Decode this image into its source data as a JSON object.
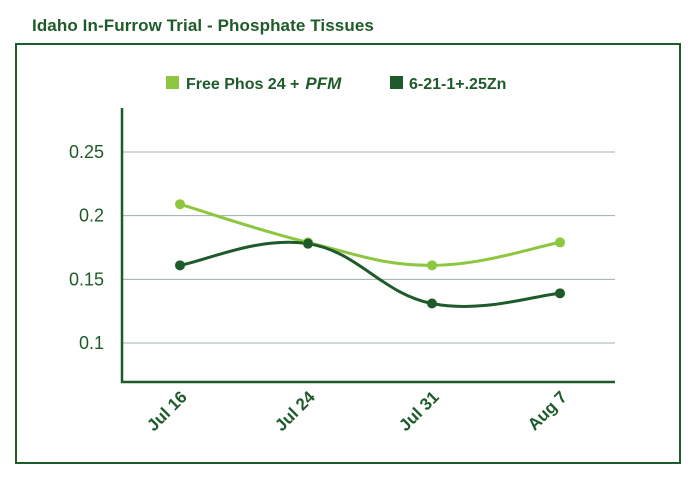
{
  "title": "Idaho In-Furrow Trial - Phosphate Tissues",
  "colors": {
    "frame": "#1e5b2b",
    "grid": "#9fb0a3",
    "series1": "#8dc63f",
    "series2": "#1e5b2b"
  },
  "chart_data": {
    "type": "line",
    "title": "Idaho In-Furrow Trial - Phosphate Tissues",
    "xlabel": "",
    "ylabel": "",
    "categories": [
      "Jul 16",
      "Jul 24",
      "Jul 31",
      "Aug 7"
    ],
    "yticks": [
      "0.1",
      "0.15",
      "0.2",
      "0.25"
    ],
    "ylim": [
      0.07,
      0.28
    ],
    "grid": true,
    "legend_position": "top",
    "series": [
      {
        "name": "Free Phos 24 +",
        "name_suffix": "PFM",
        "color": "#8dc63f",
        "values": [
          0.209,
          0.179,
          0.161,
          0.179
        ]
      },
      {
        "name": "6-21-1+.25Zn",
        "color": "#1e5b2b",
        "values": [
          0.161,
          0.178,
          0.131,
          0.139
        ]
      }
    ]
  }
}
